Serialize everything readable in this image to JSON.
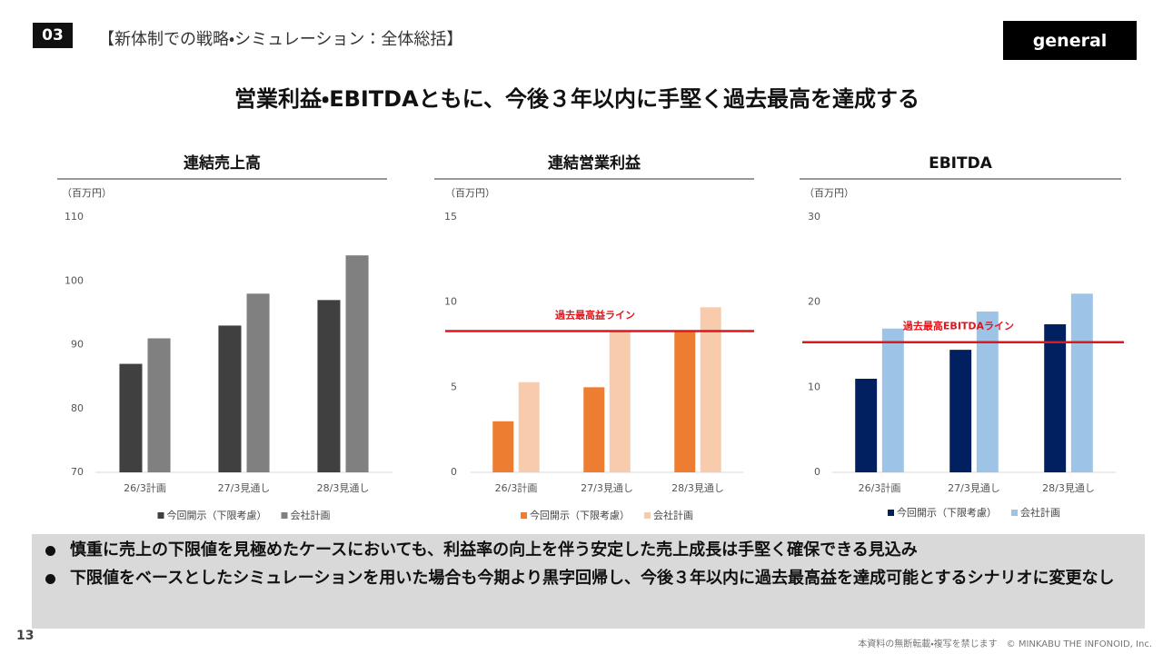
{
  "slide": {
    "number": "03",
    "section": "【新体制での戦略・シミュレーション：全体総括】",
    "badge": "general",
    "headline": "営業利益・EBITDAともに、今後３年以内に手堅く過去最高を達成する",
    "bullets": [
      "慎重に売上の下限値を見極めたケースにおいても、利益率の向上を伴う安定した売上成長は手堅く確保できる見込み",
      "下限値をベースとしたシミュレーションを用いた場合も今期より黒字回帰し、今後３年以内に過去最高益を達成可能とするシナリオに変更なし"
    ],
    "page": "13",
    "footer": "本資料の無断転載・複写を禁じます　© MINKABU THE INFONOID, Inc."
  },
  "chart_data": [
    {
      "type": "bar",
      "title": "連結売上高",
      "unit_label": "（百万円）",
      "categories": [
        "26/3計画",
        "27/3見通し",
        "28/3見通し"
      ],
      "series": [
        {
          "name": "今回開示（下限考慮）",
          "color": "#404040",
          "values": [
            87,
            93,
            97
          ]
        },
        {
          "name": "会社計画",
          "color": "#808080",
          "values": [
            91,
            98,
            104
          ]
        }
      ],
      "ylim": [
        70,
        110
      ],
      "yticks": [
        70,
        80,
        90,
        100,
        110
      ]
    },
    {
      "type": "bar",
      "title": "連結営業利益",
      "unit_label": "（百万円）",
      "categories": [
        "26/3計画",
        "27/3見通し",
        "28/3見通し"
      ],
      "series": [
        {
          "name": "今回開示（下限考慮）",
          "color": "#ed7d31",
          "values": [
            3,
            5,
            8.3
          ]
        },
        {
          "name": "会社計画",
          "color": "#f8cbad",
          "values": [
            5.3,
            8.3,
            9.7
          ]
        }
      ],
      "ylim": [
        0,
        15
      ],
      "yticks": [
        0,
        5,
        10,
        15
      ],
      "reference_line": {
        "value": 8.3,
        "label": "過去最高益ライン",
        "color": "#e0161c"
      }
    },
    {
      "type": "bar",
      "title": "EBITDA",
      "unit_label": "（百万円）",
      "categories": [
        "26/3計画",
        "27/3見通し",
        "28/3見通し"
      ],
      "series": [
        {
          "name": "今回開示（下限考慮）",
          "color": "#002060",
          "values": [
            11,
            14.4,
            17.4
          ]
        },
        {
          "name": "会社計画",
          "color": "#9dc3e6",
          "values": [
            16.9,
            18.9,
            21
          ]
        }
      ],
      "ylim": [
        0,
        30
      ],
      "yticks": [
        0,
        10,
        20,
        30
      ],
      "reference_line": {
        "value": 15.3,
        "label": "過去最高EBITDAライン",
        "color": "#e0161c"
      }
    }
  ]
}
